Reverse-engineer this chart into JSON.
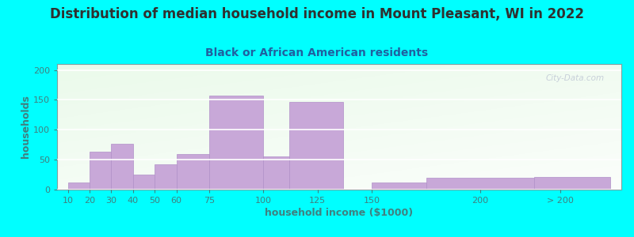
{
  "title": "Distribution of median household income in Mount Pleasant, WI in 2022",
  "subtitle": "Black or African American residents",
  "xlabel": "household income ($1000)",
  "ylabel": "households",
  "background_outer": "#00FFFF",
  "bar_color": "#c8a8d8",
  "bar_edge_color": "#b090c8",
  "title_color": "#303030",
  "subtitle_color": "#2060a0",
  "axis_label_color": "#408080",
  "tick_label_color": "#408080",
  "watermark": "City-Data.com",
  "values": [
    12,
    63,
    77,
    25,
    42,
    60,
    157,
    55,
    147,
    12,
    20,
    21
  ],
  "bar_lefts": [
    10,
    20,
    30,
    40,
    50,
    60,
    75,
    100,
    112,
    150,
    175,
    225
  ],
  "bar_widths": [
    10,
    10,
    10,
    10,
    10,
    15,
    25,
    12,
    25,
    25,
    50,
    35
  ],
  "ylim": [
    0,
    210
  ],
  "yticks": [
    0,
    50,
    100,
    150,
    200
  ],
  "xtick_labels": [
    "10",
    "20",
    "30",
    "40",
    "50",
    "60",
    "75",
    "100",
    "125",
    "150",
    "200",
    "> 200"
  ],
  "xtick_positions": [
    10,
    20,
    30,
    40,
    50,
    60,
    75,
    100,
    125,
    150,
    200,
    237
  ],
  "xlim": [
    5,
    265
  ],
  "title_fontsize": 12,
  "subtitle_fontsize": 10,
  "axis_label_fontsize": 9,
  "tick_fontsize": 8
}
